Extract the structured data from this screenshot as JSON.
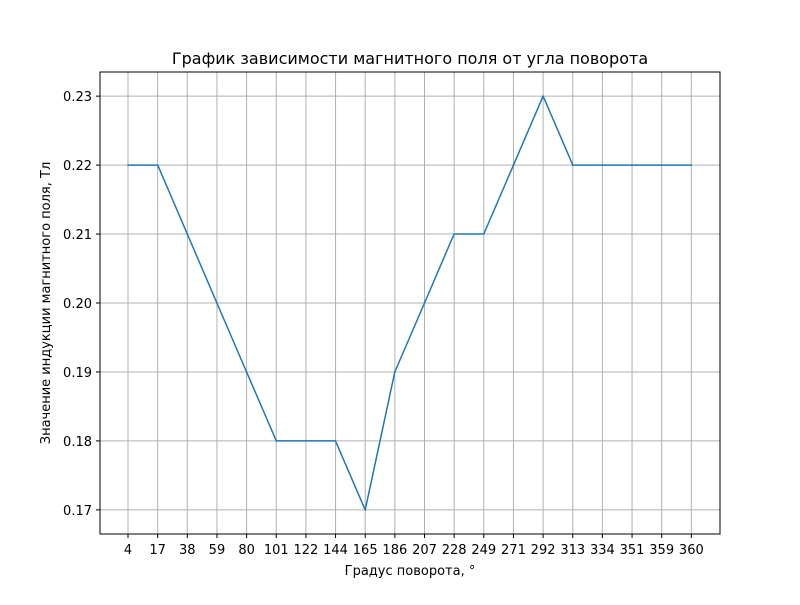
{
  "chart_data": {
    "type": "line",
    "title": "График зависимости магнитного поля от угла поворота",
    "xlabel": "Градус поворота, °",
    "ylabel": "Значение индукции магнитного поля, Тл",
    "categories": [
      "4",
      "17",
      "38",
      "59",
      "80",
      "101",
      "122",
      "144",
      "165",
      "186",
      "207",
      "228",
      "249",
      "271",
      "292",
      "313",
      "334",
      "351",
      "359",
      "360"
    ],
    "series": [
      {
        "values": [
          0.22,
          0.22,
          0.21,
          0.2,
          0.19,
          0.18,
          0.18,
          0.18,
          0.17,
          0.19,
          0.2,
          0.21,
          0.21,
          0.22,
          0.23,
          0.22,
          0.22,
          0.22,
          0.22,
          0.22
        ]
      }
    ],
    "y_ticks": [
      "0.17",
      "0.18",
      "0.19",
      "0.20",
      "0.21",
      "0.22",
      "0.23"
    ],
    "ylim": [
      0.1665,
      0.2335
    ],
    "grid": true,
    "line_color": "#1f77b4",
    "grid_color": "#b0b0b0"
  }
}
